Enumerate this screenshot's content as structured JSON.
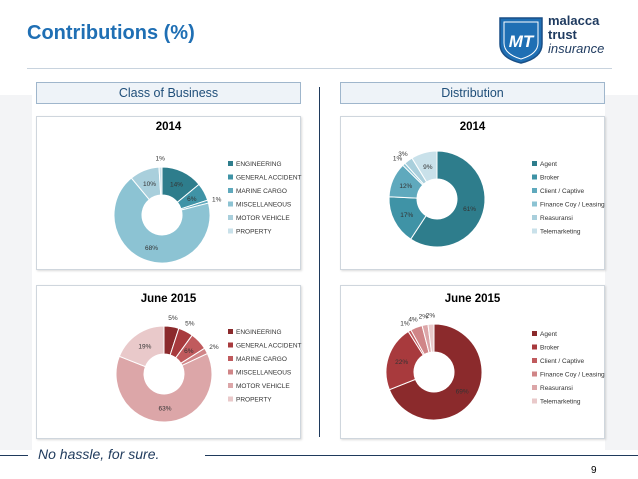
{
  "slide": {
    "title": "Contributions (%)",
    "page_number": "9",
    "tagline": "No hassle, for sure.",
    "logo": {
      "badge": "MT",
      "line1": "malacca",
      "line2": "trust",
      "line3": "insurance"
    }
  },
  "sections": {
    "left": "Class of Business",
    "right": "Distribution"
  },
  "colors": {
    "blue_palette": [
      "#2e7d8c",
      "#3f93a6",
      "#5fa9bd",
      "#8cc3d3",
      "#a9cfdc",
      "#c9e1ea"
    ],
    "red_palette": [
      "#8b2a2c",
      "#a83a3d",
      "#c05a5d",
      "#d08587",
      "#dca6a8",
      "#e9c9ca"
    ],
    "accent": "#1f6fb4"
  },
  "chart_data": [
    {
      "type": "pie",
      "title": "2014",
      "categories": [
        "ENGINEERING",
        "GENERAL ACCIDENT",
        "MARINE CARGO",
        "MISCELLANEOUS",
        "MOTOR VEHICLE",
        "PROPERTY"
      ],
      "values": [
        14,
        6,
        1,
        68,
        10,
        1
      ],
      "labels": [
        "14%",
        "6%",
        "1%",
        "68%",
        "10%",
        "1%"
      ]
    },
    {
      "type": "pie",
      "title": "2014",
      "categories": [
        "Agent",
        "Broker",
        "Client / Captive",
        "Finance Coy / Leasing",
        "Reasuransi",
        "Telemarketing"
      ],
      "values": [
        61,
        17,
        12,
        1,
        3,
        9
      ],
      "labels": [
        "61%",
        "17%",
        "12%",
        "1%",
        "3%",
        "9%"
      ]
    },
    {
      "type": "pie",
      "title": "June 2015",
      "categories": [
        "ENGINEERING",
        "GENERAL ACCIDENT",
        "MARINE CARGO",
        "MISCELLANEOUS",
        "MOTOR VEHICLE",
        "PROPERTY"
      ],
      "values": [
        5,
        5,
        6,
        2,
        63,
        19
      ],
      "labels": [
        "5%",
        "5%",
        "6%",
        "2%",
        "63%",
        "19%"
      ]
    },
    {
      "type": "pie",
      "title": "June 2015",
      "categories": [
        "Agent",
        "Broker",
        "Client / Captive",
        "Finance Coy / Leasing",
        "Reasuransi",
        "Telemarketing"
      ],
      "values": [
        69,
        22,
        1,
        4,
        2,
        2
      ],
      "labels": [
        "69%",
        "22%",
        "1%",
        "4%",
        "2%",
        "2%"
      ]
    }
  ]
}
